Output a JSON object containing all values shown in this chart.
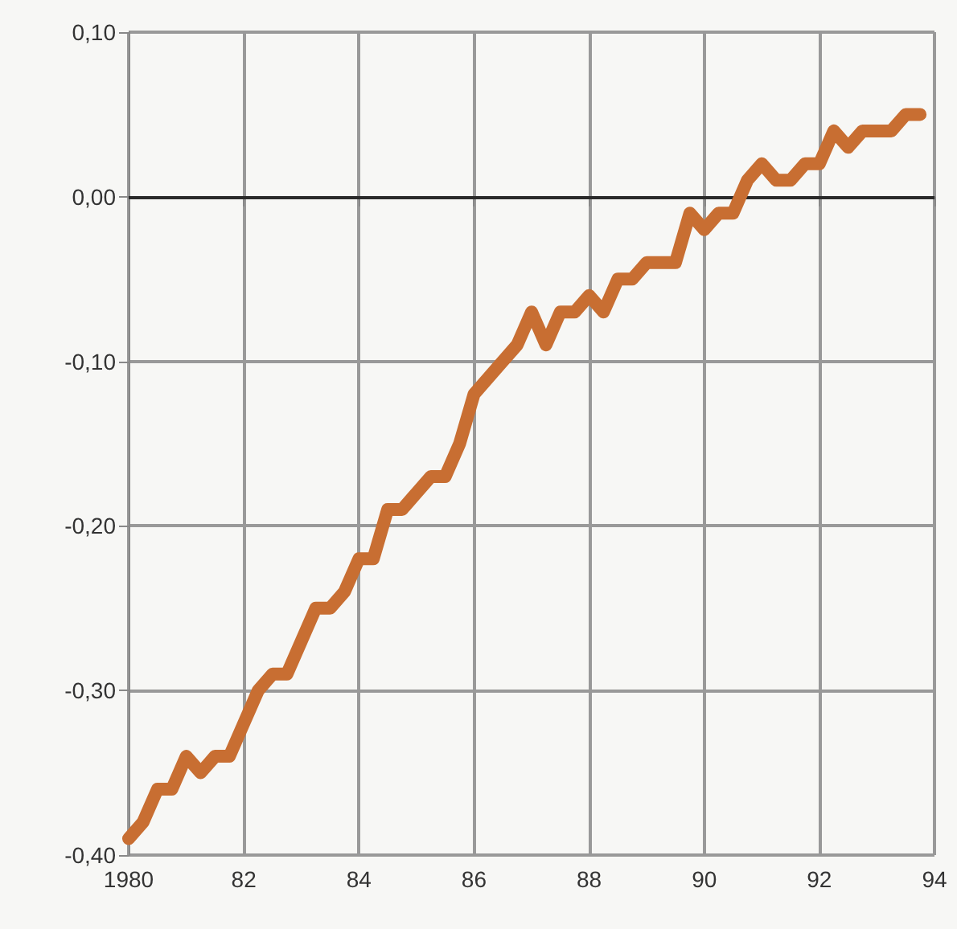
{
  "chart_data": {
    "type": "line",
    "color": "#c86e32",
    "x": [
      1980,
      1980.25,
      1980.5,
      1980.75,
      1981,
      1981.25,
      1981.5,
      1981.75,
      1982,
      1982.25,
      1982.5,
      1982.75,
      1983,
      1983.25,
      1983.5,
      1983.75,
      1984,
      1984.25,
      1984.5,
      1984.75,
      1985,
      1985.25,
      1985.5,
      1985.75,
      1986,
      1986.25,
      1986.5,
      1986.75,
      1987,
      1987.25,
      1987.5,
      1987.75,
      1988,
      1988.25,
      1988.5,
      1988.75,
      1989,
      1989.25,
      1989.5,
      1989.75,
      1990,
      1990.25,
      1990.5,
      1990.75,
      1991,
      1991.25,
      1991.5,
      1991.75,
      1992,
      1992.25,
      1992.5,
      1992.75,
      1993,
      1993.25,
      1993.5,
      1993.75
    ],
    "values": [
      -0.39,
      -0.38,
      -0.36,
      -0.36,
      -0.34,
      -0.35,
      -0.34,
      -0.34,
      -0.32,
      -0.3,
      -0.29,
      -0.29,
      -0.27,
      -0.25,
      -0.25,
      -0.24,
      -0.22,
      -0.22,
      -0.19,
      -0.19,
      -0.18,
      -0.17,
      -0.17,
      -0.15,
      -0.12,
      -0.11,
      -0.1,
      -0.09,
      -0.07,
      -0.09,
      -0.07,
      -0.07,
      -0.06,
      -0.07,
      -0.05,
      -0.05,
      -0.04,
      -0.04,
      -0.04,
      -0.01,
      -0.02,
      -0.01,
      -0.01,
      0.01,
      0.02,
      0.01,
      0.01,
      0.02,
      0.02,
      0.04,
      0.03,
      0.04,
      0.04,
      0.04,
      0.05,
      0.05
    ],
    "xlim": [
      1980,
      1994
    ],
    "xticks": [
      1980,
      {
        "value": 1982,
        "label": "82"
      },
      {
        "value": 1984,
        "label": "84"
      },
      {
        "value": 1986,
        "label": "86"
      },
      {
        "value": 1988,
        "label": "88"
      },
      {
        "value": 1990,
        "label": "90"
      },
      {
        "value": 1992,
        "label": "92"
      },
      {
        "value": 1994,
        "label": "94"
      }
    ],
    "ylim": [
      -0.4,
      0.1
    ],
    "yticks": [
      {
        "value": -0.4,
        "label": "-0,40"
      },
      {
        "value": -0.3,
        "label": "-0,30"
      },
      {
        "value": -0.2,
        "label": "-0,20"
      },
      {
        "value": -0.1,
        "label": "-0,10"
      },
      {
        "value": 0,
        "label": "0,00"
      },
      {
        "value": 0.1,
        "label": "0,10"
      }
    ],
    "grid": true,
    "line_style": "solid",
    "ref_lines": [
      {
        "axis": "y",
        "value": 0,
        "color": "#2a2a2a"
      }
    ]
  }
}
